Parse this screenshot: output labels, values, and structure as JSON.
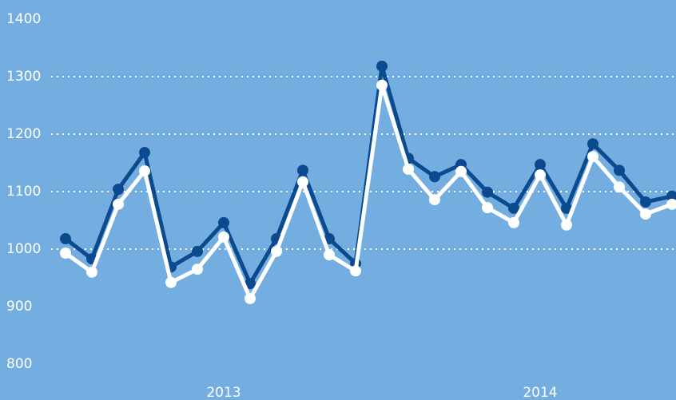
{
  "chart_data": {
    "type": "line",
    "background": "#74aee0",
    "categories": [
      null,
      null,
      null,
      null,
      null,
      null,
      "2013",
      null,
      null,
      null,
      null,
      null,
      null,
      null,
      null,
      null,
      null,
      null,
      "2014",
      null,
      null,
      null,
      null,
      null
    ],
    "series": [
      {
        "color": "#0b4a8f",
        "values": [
          1018,
          983,
          1104,
          1168,
          969,
          996,
          1046,
          940,
          1018,
          1137,
          1018,
          975,
          1318,
          1158,
          1126,
          1147,
          1099,
          1071,
          1147,
          1071,
          1183,
          1137,
          1082,
          1092
        ]
      },
      {
        "color": "#ffffff",
        "values": [
          993,
          960,
          1078,
          1136,
          942,
          965,
          1021,
          914,
          996,
          1117,
          990,
          962,
          1285,
          1139,
          1086,
          1135,
          1072,
          1046,
          1129,
          1042,
          1161,
          1108,
          1061,
          1078
        ]
      }
    ],
    "ylim": [
      800,
      1400
    ],
    "yticks": [
      800,
      900,
      1000,
      1100,
      1200,
      1300,
      1400
    ],
    "grid_lines": [
      1000,
      1100,
      1200,
      1300
    ]
  }
}
